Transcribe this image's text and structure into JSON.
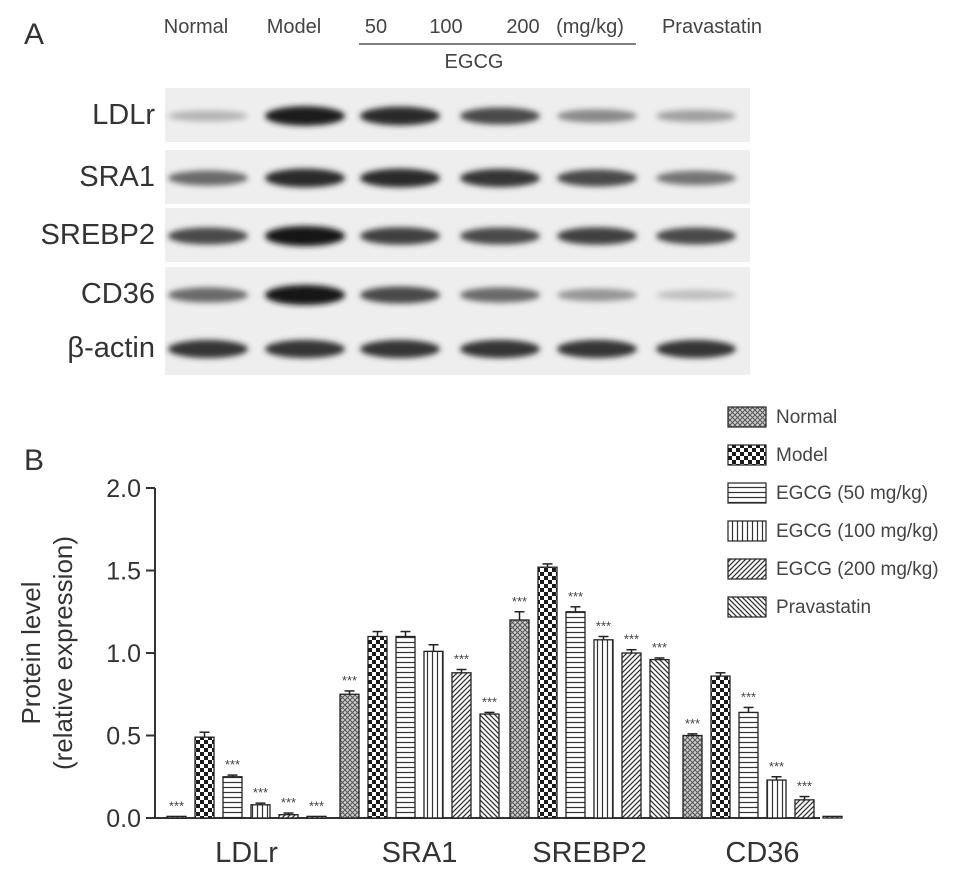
{
  "panel_a": {
    "label": "A",
    "columns": [
      "Normal",
      "Model",
      "50",
      "100",
      "200",
      "(mg/kg)",
      "Pravastatin"
    ],
    "egcg_label": "EGCG",
    "rows": [
      {
        "name": "LDLr",
        "band_intensity": [
          0.25,
          0.95,
          0.9,
          0.75,
          0.45,
          0.35
        ]
      },
      {
        "name": "SRA1",
        "band_intensity": [
          0.6,
          0.9,
          0.9,
          0.85,
          0.75,
          0.55
        ]
      },
      {
        "name": "SREBP2",
        "band_intensity": [
          0.75,
          1.0,
          0.8,
          0.75,
          0.8,
          0.75
        ]
      },
      {
        "name": "CD36",
        "band_intensity": [
          0.6,
          1.0,
          0.75,
          0.6,
          0.4,
          0.2
        ]
      },
      {
        "name": "β-actin",
        "band_intensity": [
          0.85,
          0.85,
          0.85,
          0.85,
          0.85,
          0.85
        ]
      }
    ]
  },
  "panel_b": {
    "label": "B",
    "legend": [
      {
        "name": "Normal",
        "pattern": "crosshatch"
      },
      {
        "name": "Model",
        "pattern": "checker"
      },
      {
        "name": "EGCG (50 mg/kg)",
        "pattern": "hlines"
      },
      {
        "name": "EGCG (100 mg/kg)",
        "pattern": "vlines"
      },
      {
        "name": "EGCG (200 mg/kg)",
        "pattern": "diag-up"
      },
      {
        "name": "Pravastatin",
        "pattern": "diag-down"
      }
    ],
    "significance_label": "***"
  },
  "chart_data": {
    "type": "bar",
    "title": "",
    "ylabel": [
      "Protein level",
      "(relative expression)"
    ],
    "xlabel": "",
    "ylim": [
      0,
      2.0
    ],
    "yticks": [
      "0.0",
      "0.5",
      "1.0",
      "1.5",
      "2.0"
    ],
    "categories": [
      "LDLr",
      "SRA1",
      "SREBP2",
      "CD36"
    ],
    "series": [
      {
        "name": "Normal",
        "values": [
          0.01,
          0.75,
          1.2,
          0.5
        ],
        "errors": [
          0.0,
          0.02,
          0.05,
          0.01
        ],
        "sig": [
          true,
          true,
          true,
          true
        ]
      },
      {
        "name": "Model",
        "values": [
          0.49,
          1.1,
          1.52,
          0.86
        ],
        "errors": [
          0.03,
          0.03,
          0.02,
          0.02
        ],
        "sig": [
          false,
          false,
          false,
          false
        ]
      },
      {
        "name": "EGCG (50 mg/kg)",
        "values": [
          0.25,
          1.1,
          1.25,
          0.64
        ],
        "errors": [
          0.01,
          0.03,
          0.03,
          0.03
        ],
        "sig": [
          true,
          false,
          true,
          true
        ]
      },
      {
        "name": "EGCG (100 mg/kg)",
        "values": [
          0.08,
          1.01,
          1.08,
          0.23
        ],
        "errors": [
          0.01,
          0.04,
          0.02,
          0.02
        ],
        "sig": [
          true,
          false,
          true,
          true
        ]
      },
      {
        "name": "EGCG (200 mg/kg)",
        "values": [
          0.02,
          0.88,
          1.0,
          0.11
        ],
        "errors": [
          0.01,
          0.02,
          0.02,
          0.02
        ],
        "sig": [
          true,
          true,
          true,
          true
        ]
      },
      {
        "name": "Pravastatin",
        "values": [
          0.01,
          0.63,
          0.96,
          0.01
        ],
        "errors": [
          0.0,
          0.01,
          0.01,
          0.0
        ],
        "sig": [
          true,
          true,
          true,
          false
        ]
      }
    ]
  }
}
